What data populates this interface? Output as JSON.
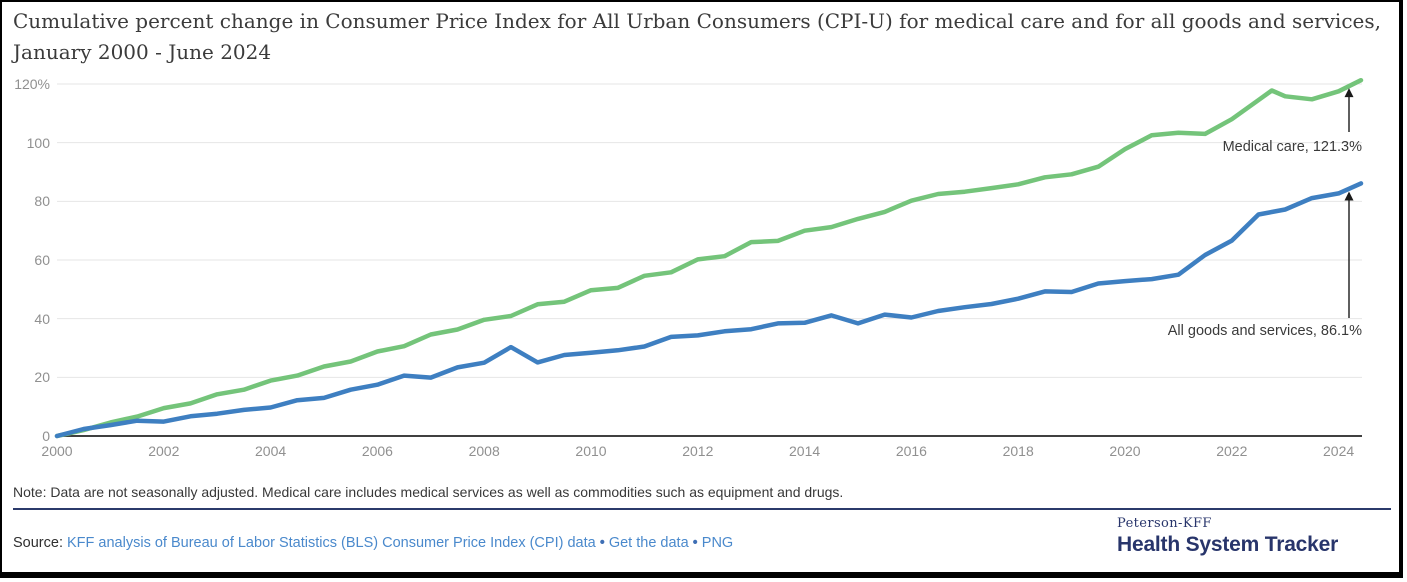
{
  "chart_data": {
    "type": "line",
    "title": "Cumulative percent change in Consumer Price Index for All Urban Consumers (CPI-U) for medical care and for all goods and services, January 2000 - June 2024",
    "xlabel": "",
    "ylabel": "",
    "xlim": [
      2000,
      2024.6
    ],
    "ylim": [
      0,
      120
    ],
    "grid": true,
    "x_ticks": [
      "2000",
      "2002",
      "2004",
      "2006",
      "2008",
      "2010",
      "2012",
      "2014",
      "2016",
      "2018",
      "2020",
      "2022",
      "2024"
    ],
    "y_tick_labels": [
      "120%",
      "100",
      "80",
      "60",
      "40",
      "20",
      "0"
    ],
    "y_tick_values": [
      120,
      100,
      80,
      60,
      40,
      20,
      0
    ],
    "legend": "none (end-of-line annotations with arrows)",
    "series": [
      {
        "name": "Medical care",
        "color": "#74c47a",
        "final_value": 121.3,
        "end_label": "Medical care, 121.3%",
        "x": [
          2000,
          2000.5,
          2001,
          2001.5,
          2002,
          2002.5,
          2003,
          2003.5,
          2004,
          2004.5,
          2005,
          2005.5,
          2006,
          2006.5,
          2007,
          2007.5,
          2008,
          2008.5,
          2009,
          2009.5,
          2010,
          2010.5,
          2011,
          2011.5,
          2012,
          2012.5,
          2013,
          2013.5,
          2014,
          2014.5,
          2015,
          2015.5,
          2016,
          2016.5,
          2017,
          2017.5,
          2018,
          2018.5,
          2019,
          2019.5,
          2020,
          2020.5,
          2021,
          2021.5,
          2022,
          2022.5,
          2022.75,
          2023,
          2023.5,
          2024,
          2024.42
        ],
        "values": [
          0,
          2.0,
          4.6,
          6.6,
          9.5,
          11.1,
          14.2,
          15.8,
          18.9,
          20.6,
          23.7,
          25.4,
          28.8,
          30.6,
          34.6,
          36.3,
          39.6,
          40.9,
          44.9,
          45.8,
          49.7,
          50.5,
          54.6,
          55.8,
          60.2,
          61.3,
          66.1,
          66.5,
          70.0,
          71.2,
          74.0,
          76.4,
          80.2,
          82.5,
          83.3,
          84.5,
          85.8,
          88.2,
          89.2,
          91.8,
          97.8,
          102.5,
          103.4,
          103.0,
          108.0,
          114.5,
          117.8,
          115.8,
          114.8,
          117.5,
          121.3
        ]
      },
      {
        "name": "All goods and services",
        "color": "#3e7fc1",
        "final_value": 86.1,
        "end_label": "All goods and services, 86.1%",
        "x": [
          2000,
          2000.5,
          2001,
          2001.5,
          2002,
          2002.5,
          2003,
          2003.5,
          2004,
          2004.5,
          2005,
          2005.5,
          2006,
          2006.5,
          2007,
          2007.5,
          2008,
          2008.5,
          2009,
          2009.5,
          2010,
          2010.5,
          2011,
          2011.5,
          2012,
          2012.5,
          2013,
          2013.5,
          2014,
          2014.5,
          2015,
          2015.5,
          2016,
          2016.5,
          2017,
          2017.5,
          2018,
          2018.5,
          2019,
          2019.5,
          2020,
          2020.5,
          2021,
          2021.5,
          2022,
          2022.5,
          2023,
          2023.5,
          2024,
          2024.42
        ],
        "values": [
          0,
          2.4,
          3.7,
          5.2,
          4.9,
          6.7,
          7.6,
          8.9,
          9.7,
          12.2,
          13.0,
          15.8,
          17.5,
          20.6,
          19.9,
          23.4,
          25.0,
          30.3,
          25.1,
          27.6,
          28.4,
          29.2,
          30.5,
          33.8,
          34.3,
          35.7,
          36.4,
          38.4,
          38.6,
          41.1,
          38.4,
          41.4,
          40.4,
          42.6,
          43.9,
          45.0,
          46.8,
          49.3,
          49.1,
          52.0,
          52.8,
          53.5,
          55.0,
          61.7,
          66.6,
          75.5,
          77.2,
          81.1,
          82.7,
          86.1
        ]
      }
    ]
  },
  "footer": {
    "note": "Note: Data are not seasonally adjusted. Medical care includes medical services as well as commodities such as equipment and drugs.",
    "source_label": "Source:",
    "separator": "•",
    "links": [
      {
        "text": "KFF analysis of Bureau of Labor Statistics (BLS) Consumer Price Index (CPI) data"
      },
      {
        "text": "Get the data"
      },
      {
        "text": "PNG"
      }
    ],
    "logo": {
      "top": "Peterson-KFF",
      "bottom": "Health System Tracker"
    }
  },
  "colors": {
    "medical_care_line": "#74c47a",
    "all_goods_line": "#3e7fc1",
    "gridline": "#e6e6e6",
    "axis_line": "#404040",
    "tick_text": "#909090",
    "link_blue": "#4a89cc",
    "logo_navy": "#28356b",
    "divider_navy": "#2b3a6b",
    "annotation_arrow": "#1a1a1a"
  }
}
